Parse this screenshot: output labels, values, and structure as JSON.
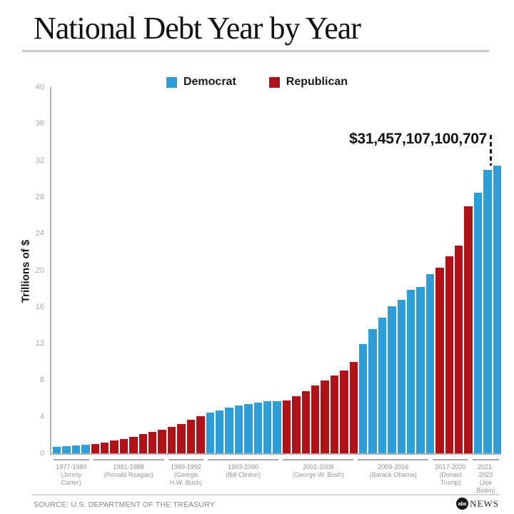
{
  "page": {
    "title": "National Debt Year by Year"
  },
  "chart_data": {
    "type": "bar",
    "title": "National Debt Year by Year",
    "xlabel": "",
    "ylabel": "Trillions of $",
    "ylim": [
      0,
      40
    ],
    "yticks": [
      0,
      4,
      8,
      12,
      16,
      20,
      24,
      28,
      32,
      36,
      40
    ],
    "grid": false,
    "annotation": "$31,457,107,100,707",
    "legend": {
      "position": "top",
      "entries": [
        {
          "label": "Democrat",
          "color": "#2E9ED9"
        },
        {
          "label": "Republican",
          "color": "#B01217"
        }
      ]
    },
    "groups": [
      {
        "years": "1977-1980",
        "president": "(Jimmy Carter)",
        "party": "Democrat",
        "values": [
          0.7,
          0.77,
          0.83,
          0.91
        ]
      },
      {
        "years": "1981-1988",
        "president": "(Ronald Reagan)",
        "party": "Republican",
        "values": [
          1.0,
          1.14,
          1.38,
          1.57,
          1.82,
          2.13,
          2.35,
          2.6
        ]
      },
      {
        "years": "1989-1992",
        "president": "(George H.W. Bush)",
        "party": "Republican",
        "values": [
          2.86,
          3.23,
          3.67,
          4.06
        ]
      },
      {
        "years": "1993-2000",
        "president": "(Bill Clinton)",
        "party": "Democrat",
        "values": [
          4.41,
          4.69,
          4.97,
          5.22,
          5.41,
          5.53,
          5.66,
          5.67
        ]
      },
      {
        "years": "2001-2008",
        "president": "(George W. Bush)",
        "party": "Republican",
        "values": [
          5.81,
          6.23,
          6.78,
          7.38,
          7.93,
          8.51,
          9.01,
          10.02
        ]
      },
      {
        "years": "2009-2016",
        "president": "(Barack Obama)",
        "party": "Democrat",
        "values": [
          11.91,
          13.56,
          14.79,
          16.07,
          16.74,
          17.82,
          18.15,
          19.57
        ]
      },
      {
        "years": "2017-2020",
        "president": "(Donald Trump)",
        "party": "Republican",
        "values": [
          20.24,
          21.52,
          22.72,
          26.95
        ]
      },
      {
        "years": "2021-2023",
        "president": "(Joe Biden)",
        "party": "Democrat",
        "values": [
          28.43,
          30.93,
          31.46
        ]
      }
    ]
  },
  "footer": {
    "source": "SOURCE: U.S. DEPARTMENT OF THE TREASURY",
    "logo_abc": "abc",
    "logo_news": "NEWS"
  }
}
